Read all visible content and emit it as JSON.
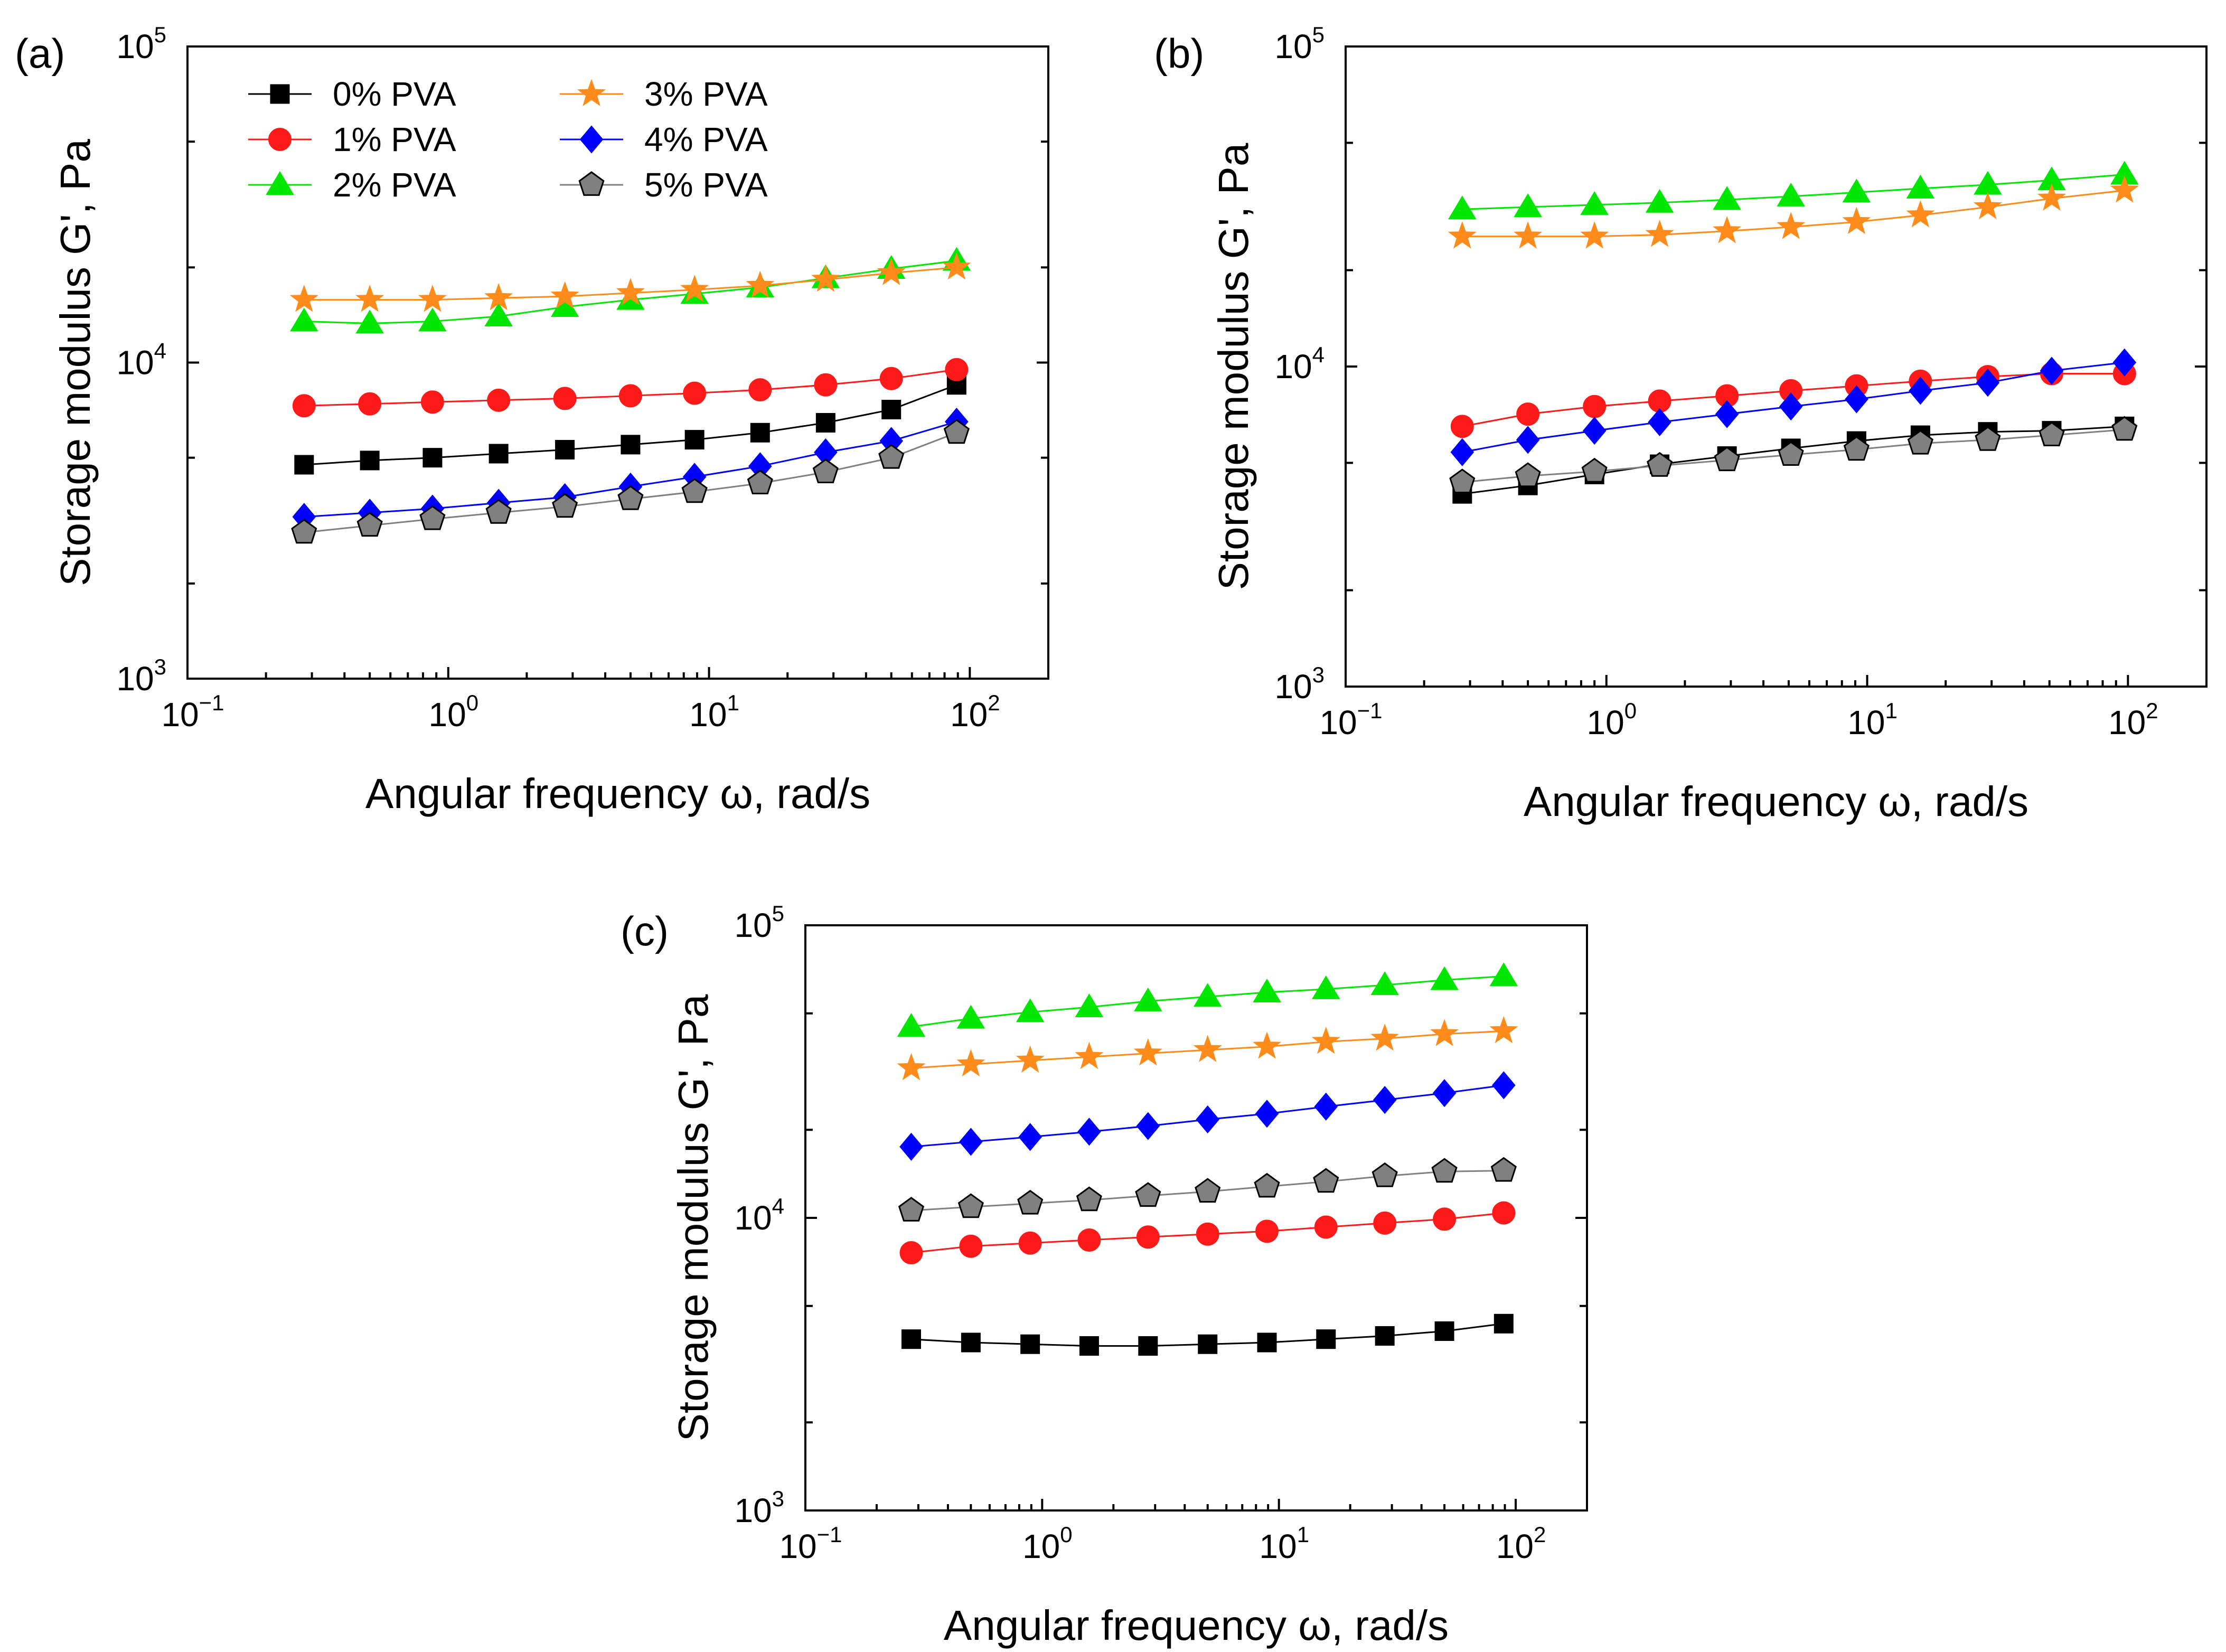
{
  "figure": {
    "series_styles": [
      {
        "name": "0% PVA",
        "marker": "square",
        "color": "#000000"
      },
      {
        "name": "1% PVA",
        "marker": "circle",
        "color": "#ff1a1a"
      },
      {
        "name": "2% PVA",
        "marker": "triangle",
        "color": "#00e600"
      },
      {
        "name": "3% PVA",
        "marker": "star",
        "color": "#ff8c1a"
      },
      {
        "name": "4% PVA",
        "marker": "diamond",
        "color": "#0000ff"
      },
      {
        "name": "5% PVA",
        "marker": "pentagon",
        "color": "#808080"
      }
    ],
    "marker_outline": "#000000"
  },
  "chart_data": [
    {
      "panel": "(a)",
      "type": "scatter",
      "xscale": "log",
      "yscale": "log",
      "xlabel": "Angular frequency ω, rad/s",
      "ylabel": "Storage modulus G', Pa",
      "xlim": [
        0.1,
        200
      ],
      "ylim": [
        1000,
        100000
      ],
      "x_ticks": [
        {
          "base": "10",
          "exp": "−1"
        },
        {
          "base": "10",
          "exp": "0"
        },
        {
          "base": "10",
          "exp": "1"
        },
        {
          "base": "10",
          "exp": "2"
        }
      ],
      "y_ticks": [
        {
          "base": "10",
          "exp": "3"
        },
        {
          "base": "10",
          "exp": "4"
        },
        {
          "base": "10",
          "exp": "5"
        }
      ],
      "legend": "top-left",
      "x": [
        0.28,
        0.5,
        0.87,
        1.56,
        2.8,
        5,
        8.8,
        15.7,
        28,
        50,
        89
      ],
      "series": [
        {
          "name": "0% PVA",
          "values": [
            4750,
            4900,
            5000,
            5150,
            5300,
            5500,
            5700,
            6000,
            6450,
            7100,
            8500
          ]
        },
        {
          "name": "1% PVA",
          "values": [
            7300,
            7400,
            7500,
            7600,
            7700,
            7850,
            8000,
            8200,
            8500,
            8900,
            9500
          ]
        },
        {
          "name": "2% PVA",
          "values": [
            13500,
            13300,
            13500,
            14000,
            15000,
            15800,
            16500,
            17300,
            18500,
            19800,
            21000
          ]
        },
        {
          "name": "3% PVA",
          "values": [
            15800,
            15800,
            15800,
            16000,
            16200,
            16600,
            17000,
            17500,
            18300,
            19200,
            20000
          ]
        },
        {
          "name": "4% PVA",
          "values": [
            3250,
            3350,
            3450,
            3600,
            3750,
            4050,
            4350,
            4700,
            5200,
            5650,
            6500
          ]
        },
        {
          "name": "5% PVA",
          "values": [
            2900,
            3050,
            3200,
            3350,
            3500,
            3700,
            3900,
            4150,
            4500,
            5000,
            6000
          ]
        }
      ]
    },
    {
      "panel": "(b)",
      "type": "scatter",
      "xscale": "log",
      "yscale": "log",
      "xlabel": "Angular frequency ω, rad/s",
      "ylabel": "Storage modulus G', Pa",
      "xlim": [
        0.1,
        200
      ],
      "ylim": [
        1000,
        100000
      ],
      "x_ticks": [
        {
          "base": "10",
          "exp": "−1"
        },
        {
          "base": "10",
          "exp": "0"
        },
        {
          "base": "10",
          "exp": "1"
        },
        {
          "base": "10",
          "exp": "2"
        }
      ],
      "y_ticks": [
        {
          "base": "10",
          "exp": "3"
        },
        {
          "base": "10",
          "exp": "4"
        },
        {
          "base": "10",
          "exp": "5"
        }
      ],
      "x": [
        0.28,
        0.5,
        0.9,
        1.6,
        2.9,
        5.1,
        9.1,
        16,
        29,
        51,
        97
      ],
      "series": [
        {
          "name": "0% PVA",
          "values": [
            4000,
            4250,
            4600,
            4950,
            5250,
            5550,
            5850,
            6100,
            6250,
            6300,
            6500
          ]
        },
        {
          "name": "1% PVA",
          "values": [
            6500,
            7100,
            7500,
            7800,
            8100,
            8400,
            8700,
            9000,
            9300,
            9500,
            9500
          ]
        },
        {
          "name": "2% PVA",
          "values": [
            31000,
            31500,
            32000,
            32500,
            33200,
            34000,
            35000,
            36000,
            37000,
            38200,
            39800
          ]
        },
        {
          "name": "3% PVA",
          "values": [
            25500,
            25500,
            25500,
            25800,
            26500,
            27300,
            28300,
            29700,
            31500,
            33500,
            35500
          ]
        },
        {
          "name": "4% PVA",
          "values": [
            5400,
            5900,
            6300,
            6700,
            7100,
            7500,
            7900,
            8400,
            8900,
            9700,
            10300
          ]
        },
        {
          "name": "5% PVA",
          "values": [
            4350,
            4550,
            4700,
            4900,
            5100,
            5300,
            5500,
            5750,
            5900,
            6100,
            6350
          ]
        }
      ]
    },
    {
      "panel": "(c)",
      "type": "scatter",
      "xscale": "log",
      "yscale": "log",
      "xlabel": "Angular frequency ω, rad/s",
      "ylabel": "Storage modulus G', Pa",
      "xlim": [
        0.1,
        200
      ],
      "ylim": [
        1000,
        100000
      ],
      "x_ticks": [
        {
          "base": "10",
          "exp": "−1"
        },
        {
          "base": "10",
          "exp": "0"
        },
        {
          "base": "10",
          "exp": "1"
        },
        {
          "base": "10",
          "exp": "2"
        }
      ],
      "y_ticks": [
        {
          "base": "10",
          "exp": "3"
        },
        {
          "base": "10",
          "exp": "4"
        },
        {
          "base": "10",
          "exp": "5"
        }
      ],
      "x": [
        0.28,
        0.5,
        0.89,
        1.58,
        2.8,
        5,
        8.9,
        15.8,
        28,
        50,
        89
      ],
      "series": [
        {
          "name": "0% PVA",
          "values": [
            3850,
            3750,
            3700,
            3650,
            3650,
            3700,
            3750,
            3850,
            3950,
            4100,
            4350
          ]
        },
        {
          "name": "1% PVA",
          "values": [
            7600,
            8000,
            8200,
            8400,
            8600,
            8800,
            9000,
            9300,
            9600,
            9900,
            10400
          ]
        },
        {
          "name": "2% PVA",
          "values": [
            45000,
            48000,
            50500,
            52500,
            55000,
            57000,
            59000,
            60500,
            62500,
            65000,
            67000
          ]
        },
        {
          "name": "3% PVA",
          "values": [
            32500,
            33500,
            34500,
            35500,
            36500,
            37500,
            38500,
            40000,
            41000,
            42500,
            43500
          ]
        },
        {
          "name": "4% PVA",
          "values": [
            17500,
            18200,
            18900,
            19700,
            20600,
            21700,
            22700,
            24000,
            25300,
            26700,
            28400
          ]
        },
        {
          "name": "5% PVA",
          "values": [
            10600,
            10900,
            11200,
            11500,
            11900,
            12300,
            12800,
            13300,
            13900,
            14400,
            14500
          ]
        }
      ]
    }
  ]
}
